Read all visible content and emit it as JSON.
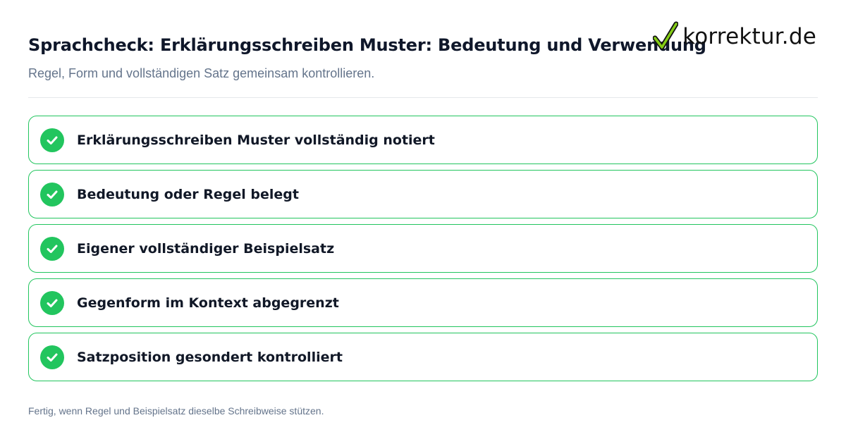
{
  "header": {
    "title": "Sprachcheck: Erklärungsschreiben Muster: Bedeutung und Verwendung",
    "subtitle": "Regel, Form und vollständigen Satz gemeinsam kontrollieren."
  },
  "logo": {
    "text": "korrektur.de",
    "icon": "checkmark-icon"
  },
  "checklist": {
    "items": [
      {
        "label": "Erklärungsschreiben Muster vollständig notiert",
        "icon": "check-circle-icon",
        "checked": true
      },
      {
        "label": "Bedeutung oder Regel belegt",
        "icon": "check-circle-icon",
        "checked": true
      },
      {
        "label": "Eigener vollständiger Beispielsatz",
        "icon": "check-circle-icon",
        "checked": true
      },
      {
        "label": "Gegenform im Kontext abgegrenzt",
        "icon": "check-circle-icon",
        "checked": true
      },
      {
        "label": "Satzposition gesondert kontrolliert",
        "icon": "check-circle-icon",
        "checked": true
      }
    ]
  },
  "footer": {
    "note": "Fertig, wenn Regel und Beispielsatz dieselbe Schreibweise stützen."
  },
  "colors": {
    "accent": "#22c55e",
    "title": "#0f172a",
    "muted": "#64748b",
    "divider": "#e5e7eb"
  }
}
